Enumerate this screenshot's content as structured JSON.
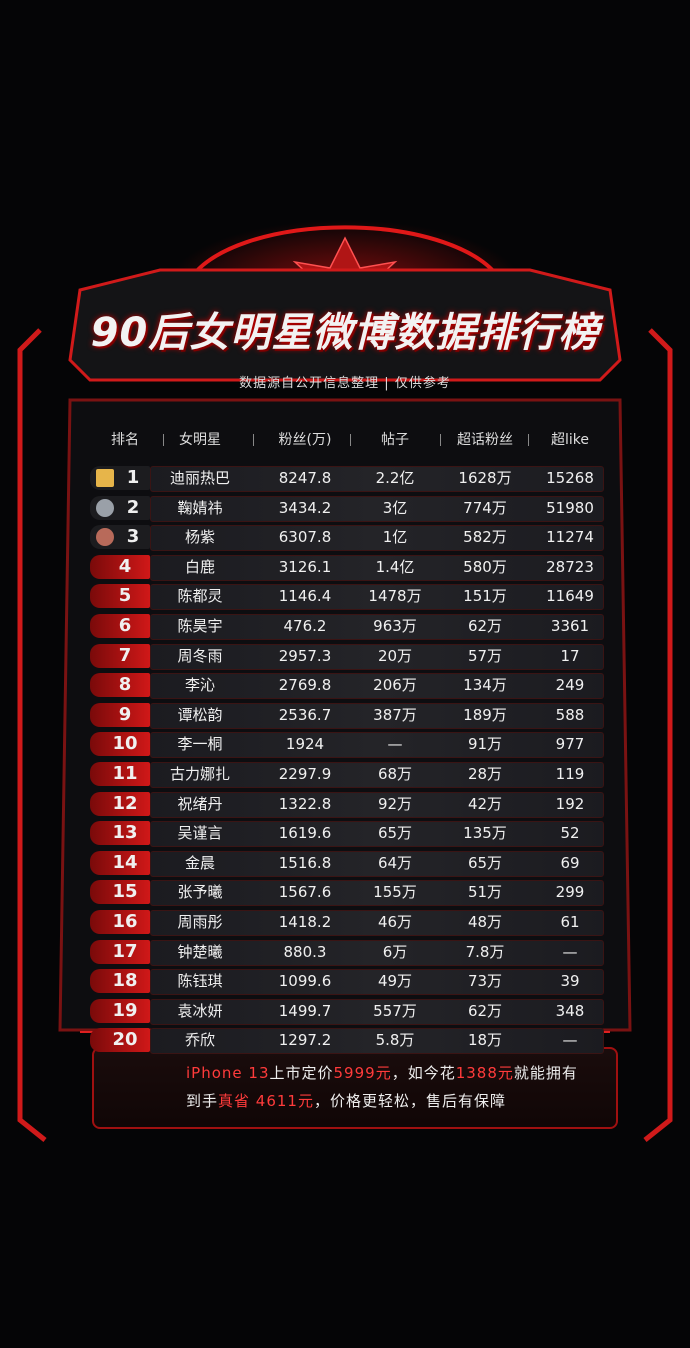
{
  "header": {
    "title": "90后女明星微博数据排行榜",
    "subtitle": "数据源自公开信息整理 | 仅供参考"
  },
  "table": {
    "columns": [
      "排名",
      "女明星",
      "粉丝(万)",
      "帖子",
      "超话粉丝",
      "超like"
    ],
    "rows": [
      [
        "1",
        "迪丽热巴",
        "8247.8",
        "2.2亿",
        "1628万",
        "15268"
      ],
      [
        "2",
        "鞠婧祎",
        "3434.2",
        "3亿",
        "774万",
        "51980"
      ],
      [
        "3",
        "杨紫",
        "6307.8",
        "1亿",
        "582万",
        "11274"
      ],
      [
        "4",
        "白鹿",
        "3126.1",
        "1.4亿",
        "580万",
        "28723"
      ],
      [
        "5",
        "陈都灵",
        "1146.4",
        "1478万",
        "151万",
        "11649"
      ],
      [
        "6",
        "陈昊宇",
        "476.2",
        "963万",
        "62万",
        "3361"
      ],
      [
        "7",
        "周冬雨",
        "2957.3",
        "20万",
        "57万",
        "17"
      ],
      [
        "8",
        "李沁",
        "2769.8",
        "206万",
        "134万",
        "249"
      ],
      [
        "9",
        "谭松韵",
        "2536.7",
        "387万",
        "189万",
        "588"
      ],
      [
        "10",
        "李一桐",
        "1924",
        "—",
        "91万",
        "977"
      ],
      [
        "11",
        "古力娜扎",
        "2297.9",
        "68万",
        "28万",
        "119"
      ],
      [
        "12",
        "祝绪丹",
        "1322.8",
        "92万",
        "42万",
        "192"
      ],
      [
        "13",
        "吴谨言",
        "1619.6",
        "65万",
        "135万",
        "52"
      ],
      [
        "14",
        "金晨",
        "1516.8",
        "64万",
        "65万",
        "69"
      ],
      [
        "15",
        "张予曦",
        "1567.6",
        "155万",
        "51万",
        "299"
      ],
      [
        "16",
        "周雨彤",
        "1418.2",
        "46万",
        "48万",
        "61"
      ],
      [
        "17",
        "钟楚曦",
        "880.3",
        "6万",
        "7.8万",
        "—"
      ],
      [
        "18",
        "陈钰琪",
        "1099.6",
        "49万",
        "73万",
        "39"
      ],
      [
        "19",
        "袁冰妍",
        "1499.7",
        "557万",
        "62万",
        "348"
      ],
      [
        "20",
        "乔欣",
        "1297.2",
        "5.8万",
        "18万",
        "—"
      ]
    ]
  },
  "ad": {
    "line1": [
      {
        "text": "iPhone 13",
        "hl": true
      },
      {
        "text": "上市定价",
        "hl": false
      },
      {
        "text": "5999元",
        "hl": true
      },
      {
        "text": "，如今花",
        "hl": false
      },
      {
        "text": "1388元",
        "hl": true
      },
      {
        "text": "就能拥有",
        "hl": false
      }
    ],
    "line2": [
      {
        "text": "到手",
        "hl": false
      },
      {
        "text": "真省 4611元",
        "hl": true
      },
      {
        "text": "，价格更轻松，售后有保障",
        "hl": false
      }
    ]
  }
}
